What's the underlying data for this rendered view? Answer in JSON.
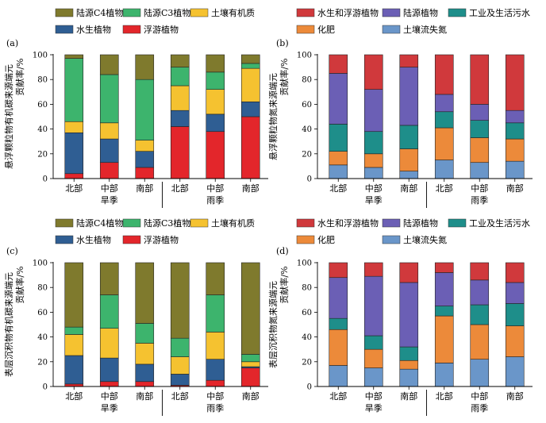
{
  "chart_data": [
    {
      "type": "bar",
      "stacked": true,
      "panel_label": "(a)",
      "ylabel": "悬浮颗粒物有机碳来源端元贡献率/%",
      "ylim": [
        0,
        100
      ],
      "yticks": [
        0,
        20,
        40,
        60,
        80,
        100
      ],
      "categories": [
        "北部",
        "中部",
        "南部",
        "北部",
        "中部",
        "南部"
      ],
      "groups": [
        {
          "label": "旱季",
          "span": [
            0,
            2
          ]
        },
        {
          "label": "雨季",
          "span": [
            3,
            5
          ]
        }
      ],
      "legend_position": "top",
      "series": [
        {
          "name": "浮游植物",
          "color": "#e3262b",
          "values": [
            4,
            13,
            9,
            42,
            38,
            50
          ]
        },
        {
          "name": "水生植物",
          "color": "#2f5e93",
          "values": [
            33,
            19,
            13,
            13,
            14,
            12
          ]
        },
        {
          "name": "土壤有机质",
          "color": "#f5c230",
          "values": [
            9,
            13,
            9,
            20,
            20,
            27
          ]
        },
        {
          "name": "陆源C3植物",
          "color": "#3db46d",
          "values": [
            51,
            39,
            49,
            15,
            14,
            4
          ]
        },
        {
          "name": "陆源C4植物",
          "color": "#7f7a2d",
          "values": [
            3,
            16,
            20,
            10,
            14,
            7
          ]
        }
      ]
    },
    {
      "type": "bar",
      "stacked": true,
      "panel_label": "(b)",
      "ylabel": "悬浮颗粒物氮来源端元贡献率/%",
      "ylim": [
        0,
        100
      ],
      "yticks": [
        0,
        20,
        40,
        60,
        80,
        100
      ],
      "categories": [
        "北部",
        "中部",
        "南部",
        "北部",
        "中部",
        "南部"
      ],
      "groups": [
        {
          "label": "旱季",
          "span": [
            0,
            2
          ]
        },
        {
          "label": "雨季",
          "span": [
            3,
            5
          ]
        }
      ],
      "legend_position": "top",
      "series": [
        {
          "name": "土壤流失氮",
          "color": "#6a96c9",
          "values": [
            11,
            9,
            6,
            15,
            13,
            14
          ]
        },
        {
          "name": "化肥",
          "color": "#ec8a3a",
          "values": [
            11,
            11,
            18,
            26,
            20,
            18
          ]
        },
        {
          "name": "工业及生活污水",
          "color": "#1e8e8a",
          "values": [
            22,
            18,
            19,
            13,
            14,
            13
          ]
        },
        {
          "name": "陆源植物",
          "color": "#6b5fb5",
          "values": [
            41,
            34,
            47,
            14,
            13,
            10
          ]
        },
        {
          "name": "水生和浮游植物",
          "color": "#d0393c",
          "values": [
            15,
            28,
            10,
            32,
            40,
            45
          ]
        }
      ]
    },
    {
      "type": "bar",
      "stacked": true,
      "panel_label": "(c)",
      "ylabel": "表层沉积物有机碳来源端元贡献率/%",
      "ylim": [
        0,
        100
      ],
      "yticks": [
        0,
        20,
        40,
        60,
        80,
        100
      ],
      "categories": [
        "北部",
        "中部",
        "南部",
        "北部",
        "中部",
        "南部"
      ],
      "groups": [
        {
          "label": "旱季",
          "span": [
            0,
            2
          ]
        },
        {
          "label": "雨季",
          "span": [
            3,
            5
          ]
        }
      ],
      "legend_position": "top",
      "series": [
        {
          "name": "浮游植物",
          "color": "#e3262b",
          "values": [
            2,
            4,
            4,
            1,
            5,
            15
          ]
        },
        {
          "name": "水生植物",
          "color": "#2f5e93",
          "values": [
            23,
            19,
            14,
            9,
            17,
            1
          ]
        },
        {
          "name": "土壤有机质",
          "color": "#f5c230",
          "values": [
            17,
            24,
            17,
            14,
            22,
            4
          ]
        },
        {
          "name": "陆源C3植物",
          "color": "#3db46d",
          "values": [
            6,
            27,
            16,
            15,
            30,
            6
          ]
        },
        {
          "name": "陆源C4植物",
          "color": "#7f7a2d",
          "values": [
            52,
            26,
            49,
            61,
            26,
            74
          ]
        }
      ]
    },
    {
      "type": "bar",
      "stacked": true,
      "panel_label": "(d)",
      "ylabel": "表层沉积物氮来源端元贡献率/%",
      "ylim": [
        0,
        100
      ],
      "yticks": [
        0,
        20,
        40,
        60,
        80,
        100
      ],
      "categories": [
        "北部",
        "中部",
        "南部",
        "北部",
        "中部",
        "南部"
      ],
      "groups": [
        {
          "label": "旱季",
          "span": [
            0,
            2
          ]
        },
        {
          "label": "雨季",
          "span": [
            3,
            5
          ]
        }
      ],
      "legend_position": "top",
      "series": [
        {
          "name": "土壤流失氮",
          "color": "#6a96c9",
          "values": [
            17,
            15,
            14,
            19,
            22,
            24
          ]
        },
        {
          "name": "化肥",
          "color": "#ec8a3a",
          "values": [
            29,
            15,
            7,
            38,
            28,
            25
          ]
        },
        {
          "name": "工业及生活污水",
          "color": "#1e8e8a",
          "values": [
            9,
            11,
            11,
            8,
            16,
            18
          ]
        },
        {
          "name": "陆源植物",
          "color": "#6b5fb5",
          "values": [
            33,
            48,
            52,
            27,
            20,
            17
          ]
        },
        {
          "name": "水生和浮游植物",
          "color": "#d0393c",
          "values": [
            12,
            11,
            16,
            8,
            14,
            16
          ]
        }
      ]
    }
  ]
}
